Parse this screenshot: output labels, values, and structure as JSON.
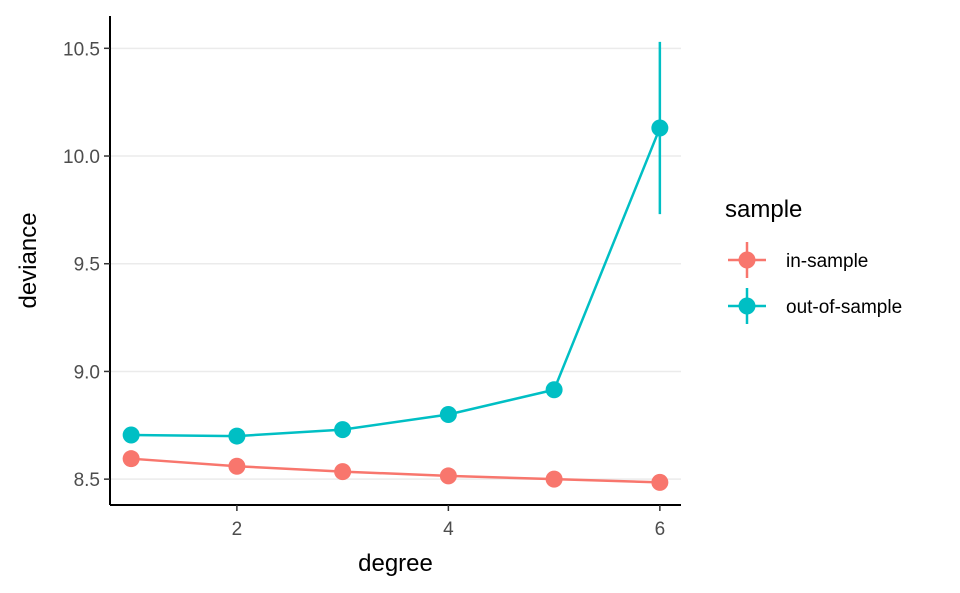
{
  "chart_data": {
    "type": "line",
    "xlabel": "degree",
    "ylabel": "deviance",
    "xlim": [
      0.8,
      6.2
    ],
    "ylim": [
      8.38,
      10.65
    ],
    "x_ticks": [
      "2",
      "4",
      "6"
    ],
    "x_tick_values": [
      2,
      4,
      6
    ],
    "y_ticks": [
      "8.5",
      "9.0",
      "9.5",
      "10.0",
      "10.5"
    ],
    "y_tick_values": [
      8.5,
      9.0,
      9.5,
      10.0,
      10.5
    ],
    "grid": "horizontal-major",
    "legend": {
      "title": "sample",
      "placement": "right"
    },
    "series": [
      {
        "name": "in-sample",
        "color": "#F8766D",
        "points": [
          {
            "x": 1,
            "y": 8.595,
            "ymin": 8.595,
            "ymax": 8.595
          },
          {
            "x": 2,
            "y": 8.56,
            "ymin": 8.56,
            "ymax": 8.56
          },
          {
            "x": 3,
            "y": 8.535,
            "ymin": 8.535,
            "ymax": 8.535
          },
          {
            "x": 4,
            "y": 8.515,
            "ymin": 8.515,
            "ymax": 8.515
          },
          {
            "x": 5,
            "y": 8.5,
            "ymin": 8.5,
            "ymax": 8.5
          },
          {
            "x": 6,
            "y": 8.485,
            "ymin": 8.485,
            "ymax": 8.485
          }
        ]
      },
      {
        "name": "out-of-sample",
        "color": "#00BFC4",
        "points": [
          {
            "x": 1,
            "y": 8.705,
            "ymin": 8.705,
            "ymax": 8.705
          },
          {
            "x": 2,
            "y": 8.7,
            "ymin": 8.7,
            "ymax": 8.7
          },
          {
            "x": 3,
            "y": 8.73,
            "ymin": 8.73,
            "ymax": 8.73
          },
          {
            "x": 4,
            "y": 8.8,
            "ymin": 8.8,
            "ymax": 8.8
          },
          {
            "x": 5,
            "y": 8.915,
            "ymin": 8.915,
            "ymax": 8.915
          },
          {
            "x": 6,
            "y": 10.13,
            "ymin": 9.73,
            "ymax": 10.53
          }
        ]
      }
    ]
  }
}
